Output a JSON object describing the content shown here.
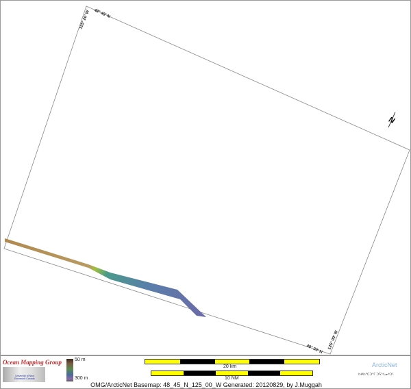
{
  "map": {
    "frame_labels": {
      "top_lat": "48° 45' N",
      "left_lon": "125° 20' W",
      "bottom_lat": "48° 30' N",
      "right_lon": "125° 00' W"
    },
    "north_arrow": "N",
    "track_colors": {
      "shallow": "#b08a50",
      "mid": "#5a9a80",
      "deep": "#6a70a8"
    }
  },
  "legend": {
    "omg_title": "Ocean Mapping Group",
    "omg_subtitle": "University of New Brunswick Canada",
    "depth_min": "50 m",
    "depth_max": "300 m",
    "scale_km_label": "20 km",
    "scale_nm_label": "10 NM",
    "arcticnet": "ArcticNet",
    "arcticnet_inuktitut": "ᐅᑭᐅᕐᑕᑐᕐᒥ ᑐᕌᖓᓂᒃᑐᑦ",
    "footer": "OMG/ArcticNet Basemap: 48_45_N_125_00_W    Generated: 20120829, by J.Muggah"
  }
}
